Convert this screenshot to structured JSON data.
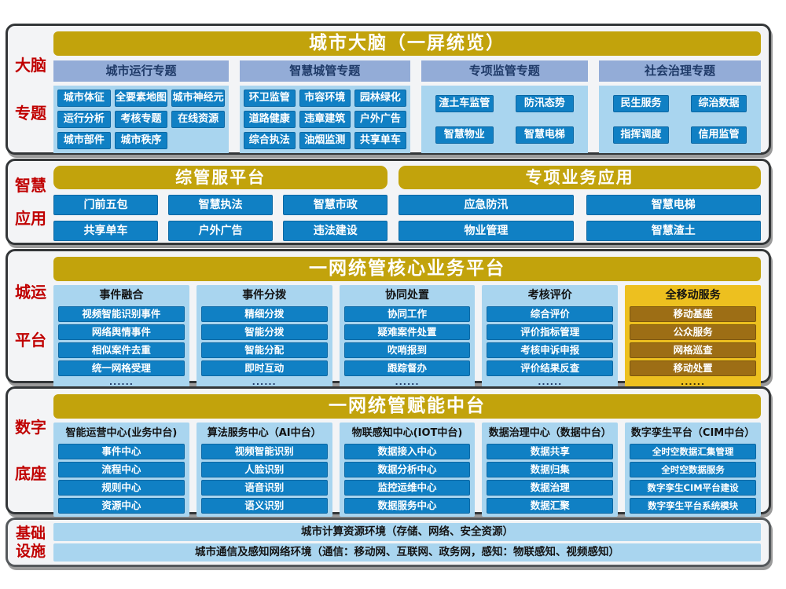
{
  "colors": {
    "gold_bar": "#c2a30c",
    "steel_header": "#93acd7",
    "light_blue_panel": "#a9d5ef",
    "blue_button": "#1080c4",
    "mobile_panel_yellow": "#edc01f",
    "mobile_button_brown": "#9d6e15",
    "side_label_red": "#c00000",
    "panel_border": "#333638"
  },
  "sections": {
    "brain": {
      "label_top": "大脑",
      "label_bottom": "专题",
      "title": "城市大脑（一屏统览）",
      "groups": [
        {
          "header": "城市运行专题",
          "items": [
            "城市体征",
            "全要素地图",
            "城市神经元",
            "运行分析",
            "考核专题",
            "在线资源",
            "城市部件",
            "城市秩序"
          ]
        },
        {
          "header": "智慧城管专题",
          "items": [
            "环卫监管",
            "市容环境",
            "园林绿化",
            "道路健康",
            "违章建筑",
            "户外广告",
            "综合执法",
            "油烟监测",
            "共享单车"
          ]
        },
        {
          "header": "专项监管专题",
          "items": [
            "渣土车监管",
            "防汛态势",
            "智慧物业",
            "智慧电梯"
          ]
        },
        {
          "header": "社会治理专题",
          "items": [
            "民生服务",
            "综治数据",
            "指挥调度",
            "信用监管"
          ]
        }
      ]
    },
    "apps": {
      "label_top": "智慧",
      "label_bottom": "应用",
      "platforms": [
        {
          "title": "综管服平台",
          "items": [
            "门前五包",
            "智慧执法",
            "智慧市政",
            "共享单车",
            "户外广告",
            "违法建设"
          ]
        },
        {
          "title": "专项业务应用",
          "items": [
            "应急防汛",
            "智慧电梯",
            "物业管理",
            "智慧渣土"
          ]
        }
      ]
    },
    "core": {
      "label_top": "城运",
      "label_bottom": "平台",
      "title": "一网统管核心业务平台",
      "columns": [
        {
          "header": "事件融合",
          "items": [
            "视频智能识别事件",
            "网络舆情事件",
            "相似案件去重",
            "统一网格受理"
          ],
          "more": "......"
        },
        {
          "header": "事件分拨",
          "items": [
            "精细分拨",
            "智能分拨",
            "智能分配",
            "即时互动"
          ],
          "more": "......"
        },
        {
          "header": "协同处置",
          "items": [
            "协同工作",
            "疑难案件处置",
            "吹哨报到",
            "跟踪督办"
          ],
          "more": "......"
        },
        {
          "header": "考核评价",
          "items": [
            "综合评价",
            "评价指标管理",
            "考核申诉申报",
            "评价结果反查"
          ],
          "more": "......"
        },
        {
          "header": "全移动服务",
          "items": [
            "移动基座",
            "公众服务",
            "网格巡查",
            "移动处置"
          ],
          "more": "......"
        }
      ]
    },
    "mid": {
      "label_top": "数字",
      "label_bottom": "底座",
      "title": "一网统管赋能中台",
      "columns": [
        {
          "header": "智能运营中心(业务中台)",
          "items": [
            "事件中心",
            "流程中心",
            "规则中心",
            "资源中心"
          ]
        },
        {
          "header": "算法服务中心（AI中台）",
          "items": [
            "视频智能识别",
            "人脸识别",
            "语音识别",
            "语义识别"
          ]
        },
        {
          "header": "物联感知中心(IOT中台)",
          "items": [
            "数据接入中心",
            "数据分析中心",
            "监控运维中心",
            "数据服务中心"
          ]
        },
        {
          "header": "数据治理中心（数据中台）",
          "items": [
            "数据共享",
            "数据归集",
            "数据治理",
            "数据汇聚"
          ]
        },
        {
          "header": "数字孪生平台（CIM中台）",
          "items": [
            "全时空数据汇集管理",
            "全时空数据服务",
            "数字孪生CIM平台建设",
            "数字孪生平台系统模块"
          ]
        }
      ]
    },
    "infra": {
      "label_top": "基础",
      "label_bottom": "设施",
      "rows": [
        "城市计算资源环境（存储、网络、安全资源）",
        "城市通信及感知网络环境（通信：移动网、互联网、政务网，感知：物联感知、视频感知）"
      ]
    }
  }
}
